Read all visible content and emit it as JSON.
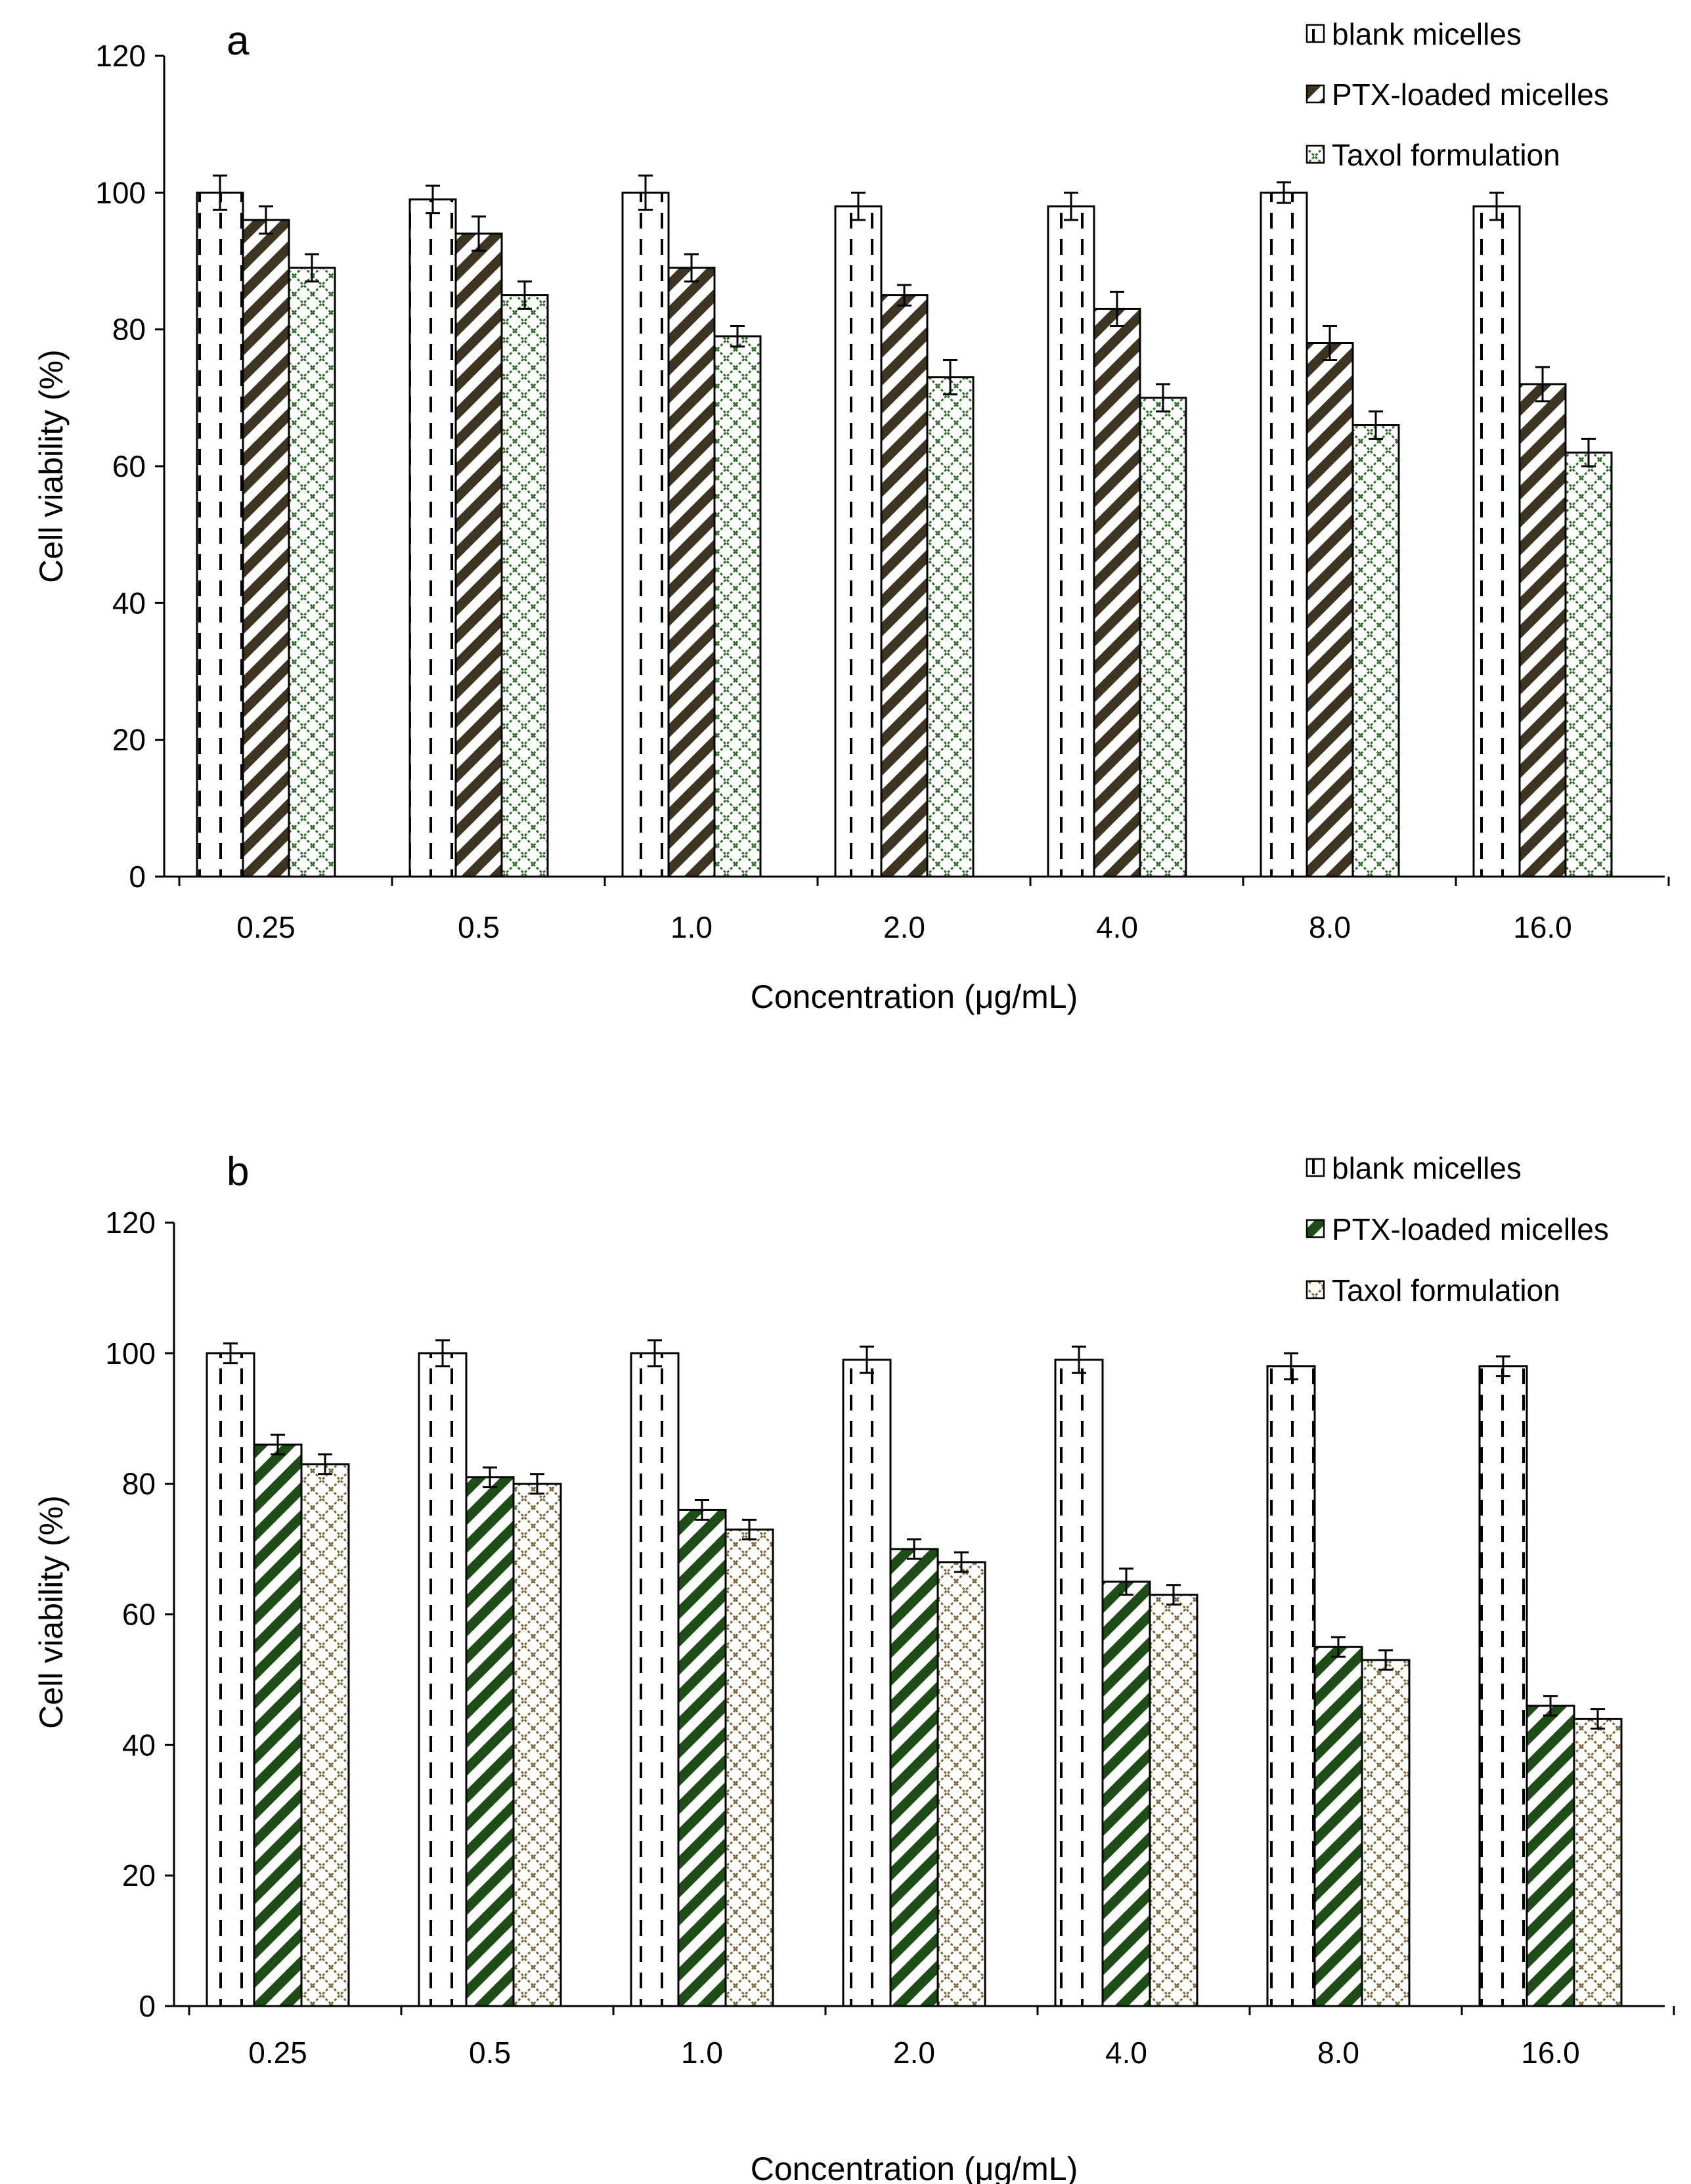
{
  "chart_data": [
    {
      "type": "bar",
      "panel_label": "a",
      "title": "",
      "xlabel": "Concentration (μg/mL)",
      "ylabel": "Cell viability (%)",
      "ylim": [
        0,
        120
      ],
      "yticks": [
        "0",
        "20",
        "40",
        "60",
        "80",
        "100",
        "120"
      ],
      "categories": [
        "0.25",
        "0.5",
        "1.0",
        "2.0",
        "4.0",
        "8.0",
        "16.0"
      ],
      "legend_position": "top-right",
      "grid": false,
      "series": [
        {
          "name": "blank micelles",
          "values": [
            100,
            99,
            100,
            98,
            98,
            100,
            98
          ],
          "errors": [
            2.5,
            2.0,
            2.5,
            2.0,
            2.0,
            1.5,
            2.0
          ],
          "color": "#000000"
        },
        {
          "name": "PTX-loaded micelles",
          "values": [
            96,
            94,
            89,
            85,
            83,
            78,
            72
          ],
          "errors": [
            2.0,
            2.5,
            2.0,
            1.5,
            2.5,
            2.5,
            2.5
          ],
          "color": "#3d3422"
        },
        {
          "name": "Taxol formulation",
          "values": [
            89,
            85,
            79,
            73,
            70,
            66,
            62
          ],
          "errors": [
            2.0,
            2.0,
            1.5,
            2.5,
            2.0,
            2.0,
            2.0
          ],
          "color": "#2f6b2a"
        }
      ]
    },
    {
      "type": "bar",
      "panel_label": "b",
      "title": "",
      "xlabel": "Concentration (μg/mL)",
      "ylabel": "Cell viability (%)",
      "ylim": [
        0,
        120
      ],
      "yticks": [
        "0",
        "20",
        "40",
        "60",
        "80",
        "100",
        "120"
      ],
      "categories": [
        "0.25",
        "0.5",
        "1.0",
        "2.0",
        "4.0",
        "8.0",
        "16.0"
      ],
      "legend_position": "top-right",
      "grid": false,
      "series": [
        {
          "name": "blank micelles",
          "values": [
            100,
            100,
            100,
            99,
            99,
            98,
            98
          ],
          "errors": [
            1.5,
            2.0,
            2.0,
            2.0,
            2.0,
            2.0,
            1.5
          ],
          "color": "#000000"
        },
        {
          "name": "PTX-loaded micelles",
          "values": [
            86,
            81,
            76,
            70,
            65,
            55,
            46
          ],
          "errors": [
            1.5,
            1.5,
            1.5,
            1.5,
            2.0,
            1.5,
            1.5
          ],
          "color": "#1e4d17"
        },
        {
          "name": "Taxol formulation",
          "values": [
            83,
            80,
            73,
            68,
            63,
            53,
            44
          ],
          "errors": [
            1.5,
            1.5,
            1.5,
            1.5,
            1.5,
            1.5,
            1.5
          ],
          "color": "#7a6a3a"
        }
      ]
    }
  ]
}
